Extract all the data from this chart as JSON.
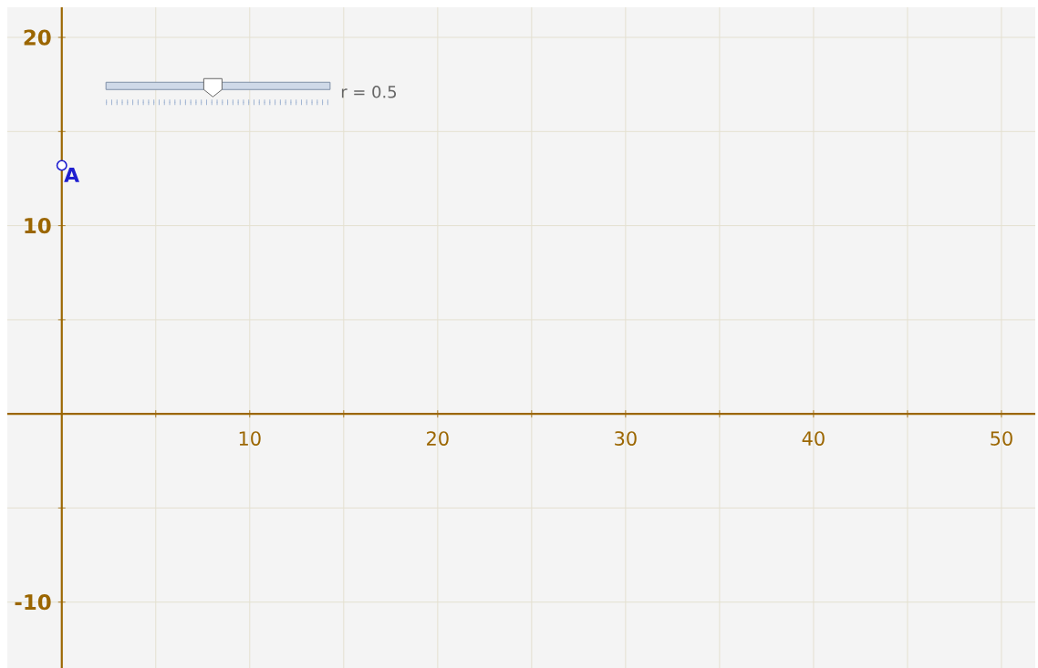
{
  "chart_data": {
    "type": "scatter",
    "x": [
      0
    ],
    "series": [
      {
        "color": "#1f1fd0",
        "values": [
          13.2
        ]
      }
    ],
    "xlim": [
      -2.9,
      51.8
    ],
    "ylim": [
      -13.5,
      21.6
    ],
    "xticks": [
      {
        "value": 5,
        "label": null
      },
      10,
      {
        "value": 15,
        "label": null
      },
      20,
      {
        "value": 25,
        "label": null
      },
      30,
      {
        "value": 35,
        "label": null
      },
      40,
      {
        "value": 45,
        "label": null
      },
      50
    ],
    "yticks": [
      -10,
      {
        "value": -5,
        "label": null
      },
      {
        "value": 5,
        "label": null
      },
      10,
      {
        "value": 15,
        "label": null
      },
      20
    ],
    "grid": true,
    "ref_lines": [
      {
        "axis": "x",
        "value": 0,
        "color": "#9b6600"
      }
    ],
    "annotations": [
      {
        "text": "A",
        "x": 0,
        "y": 13.2
      },
      "r = 0.5"
    ]
  }
}
